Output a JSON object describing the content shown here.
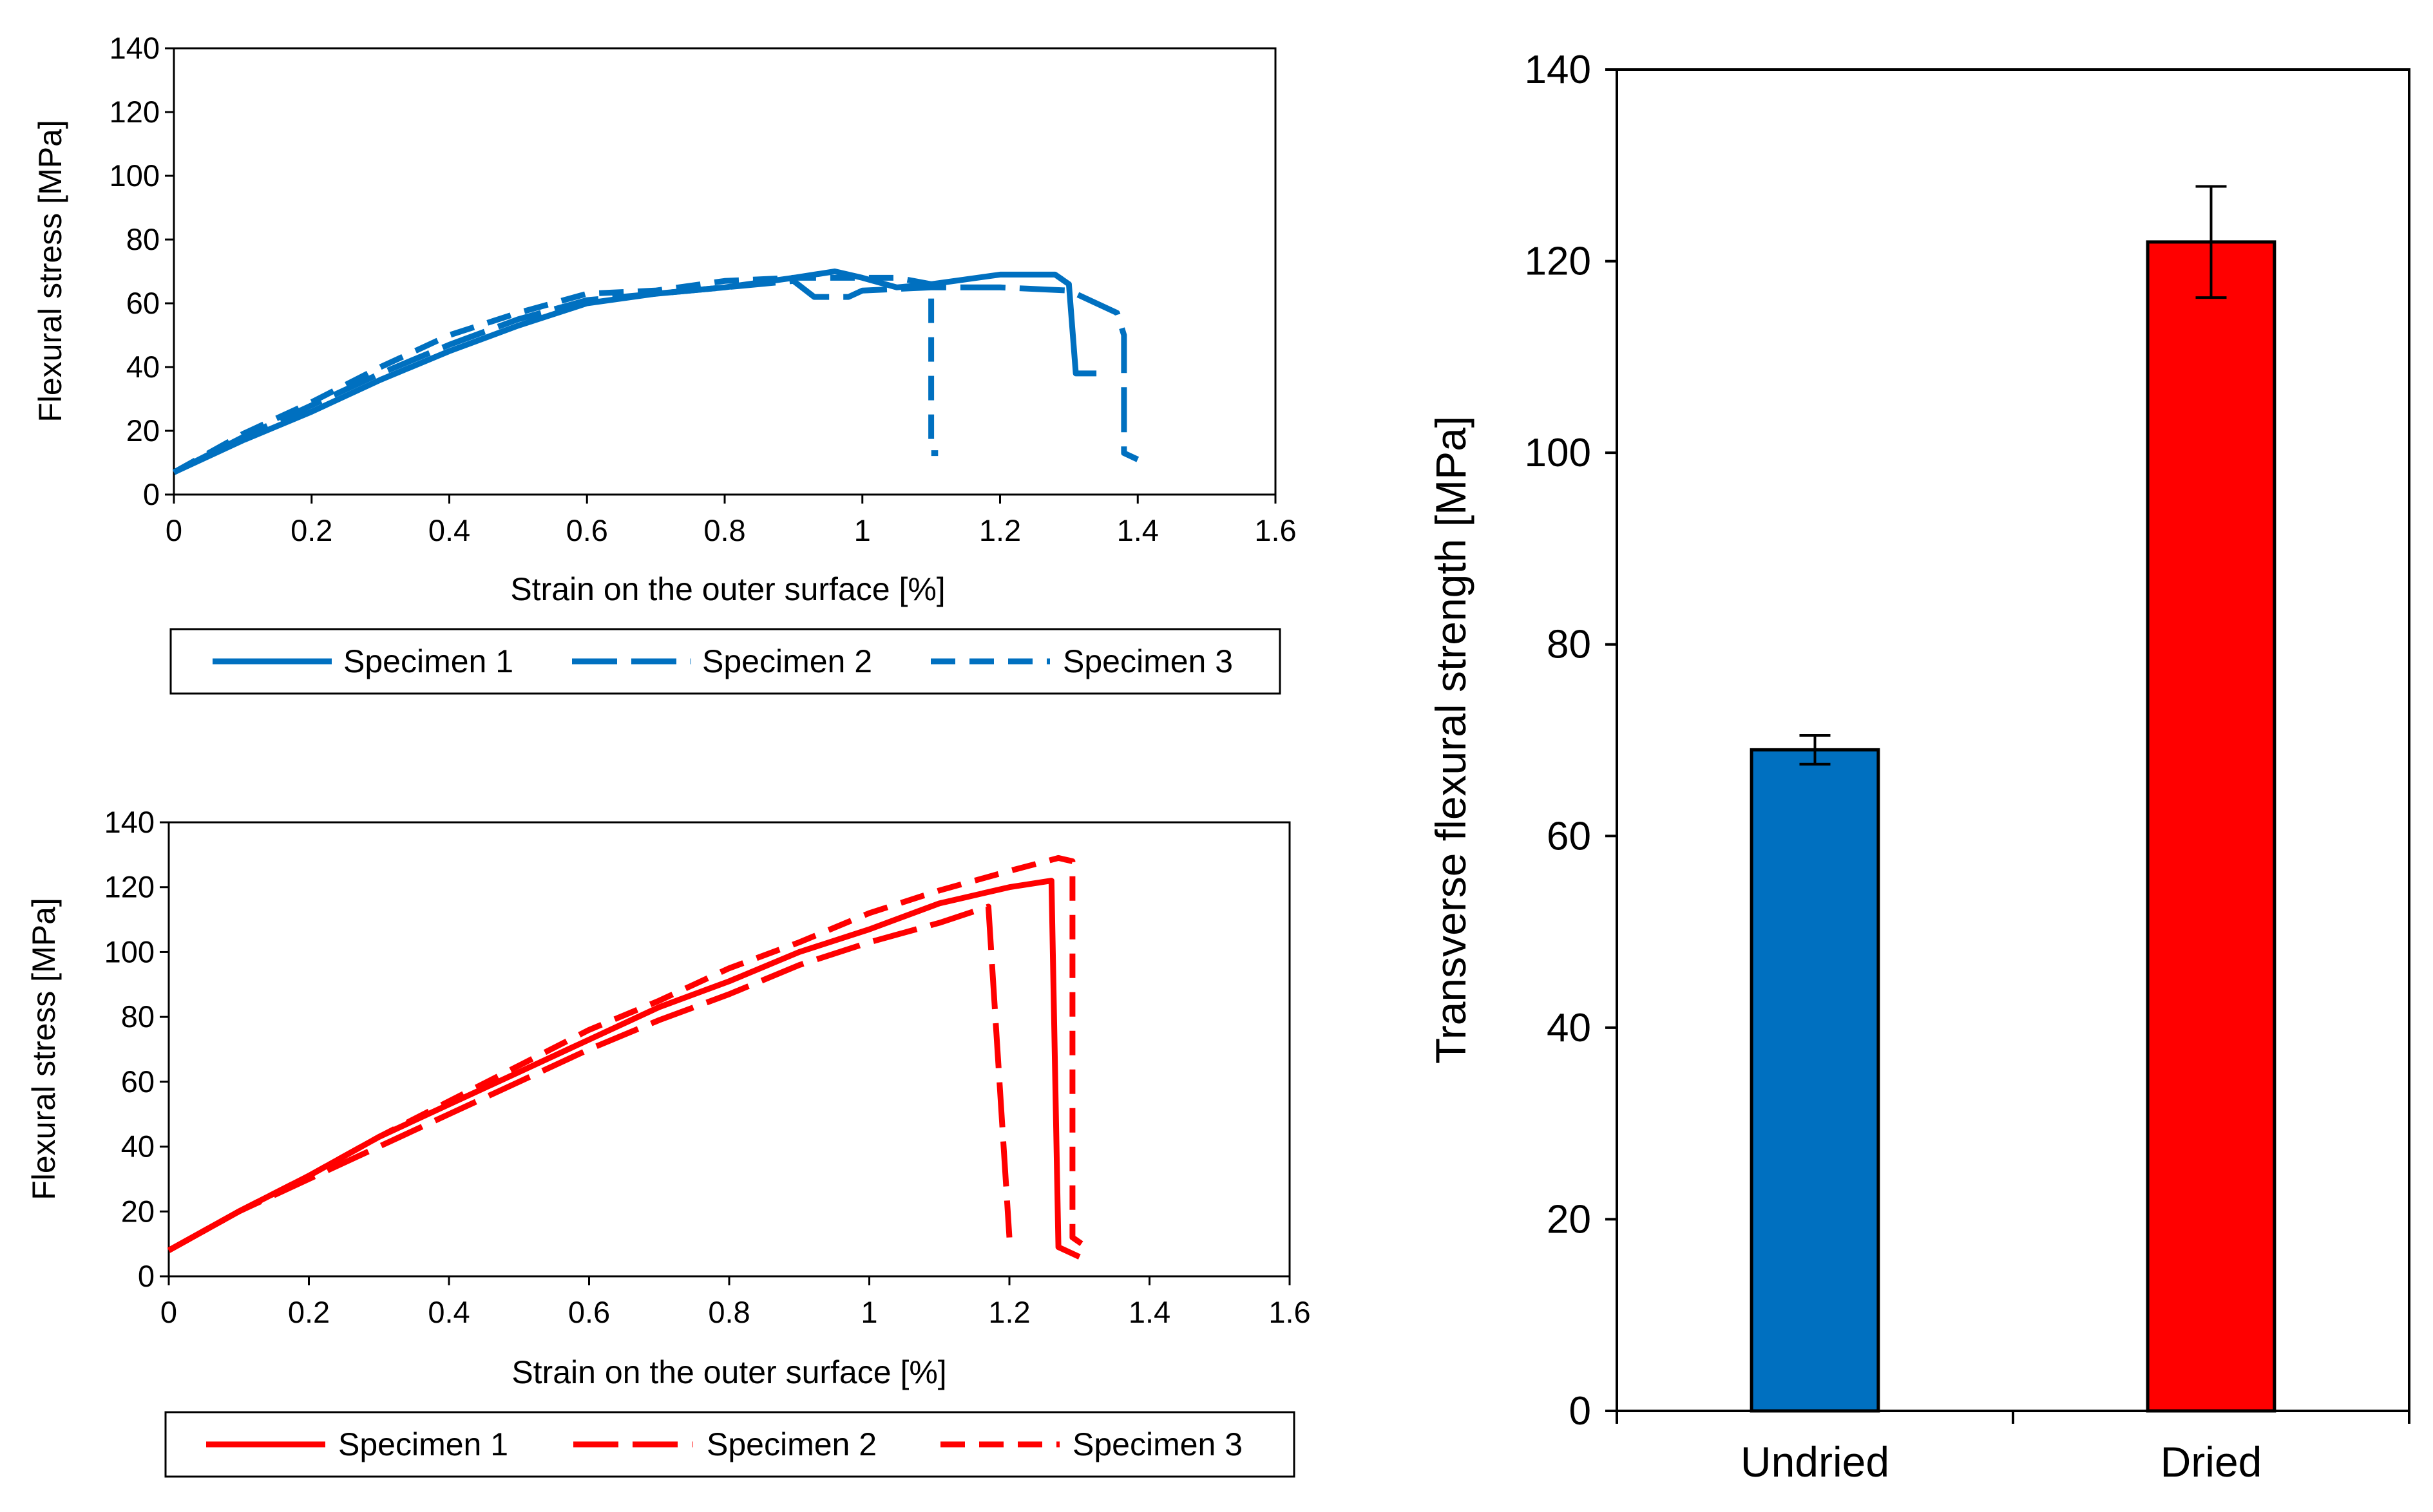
{
  "chart_data": [
    {
      "id": "undried-curves",
      "type": "line",
      "title": "",
      "xlabel": "Strain on the outer surface [%]",
      "ylabel": "Flexural  stress [MPa]",
      "xlim": [
        0,
        1.6
      ],
      "ylim": [
        0,
        140
      ],
      "xticks": [
        "0",
        "0.2",
        "0.4",
        "0.6",
        "0.8",
        "1",
        "1.2",
        "1.4",
        "1.6"
      ],
      "yticks": [
        "0",
        "20",
        "40",
        "60",
        "80",
        "100",
        "120",
        "140"
      ],
      "color": "#0070C0",
      "legend": [
        "Specimen 1",
        "Specimen 2",
        "Specimen 3"
      ],
      "series": [
        {
          "name": "Specimen 1",
          "style": "solid",
          "x": [
            0,
            0.1,
            0.2,
            0.3,
            0.4,
            0.5,
            0.6,
            0.7,
            0.8,
            0.9,
            0.96,
            1.0,
            1.05,
            1.1,
            1.2,
            1.28,
            1.3,
            1.31,
            1.34
          ],
          "y": [
            7,
            17,
            26,
            36,
            45,
            53,
            60,
            63,
            65,
            68,
            70,
            68,
            65,
            66,
            69,
            69,
            66,
            38,
            38
          ]
        },
        {
          "name": "Specimen 2",
          "style": "long-dash",
          "x": [
            0,
            0.1,
            0.2,
            0.3,
            0.4,
            0.5,
            0.6,
            0.7,
            0.8,
            0.9,
            0.93,
            0.98,
            1.0,
            1.1,
            1.2,
            1.3,
            1.37,
            1.38,
            1.38,
            1.4
          ],
          "y": [
            7,
            18,
            28,
            38,
            47,
            55,
            61,
            63,
            65,
            67,
            62,
            62,
            64,
            65,
            65,
            64,
            57,
            50,
            13,
            11
          ]
        },
        {
          "name": "Specimen 3",
          "style": "dash",
          "x": [
            0,
            0.1,
            0.2,
            0.3,
            0.4,
            0.5,
            0.6,
            0.7,
            0.8,
            0.9,
            1.0,
            1.05,
            1.1,
            1.1,
            1.11
          ],
          "y": [
            7,
            19,
            29,
            40,
            50,
            57,
            63,
            64,
            67,
            68,
            68,
            68,
            66,
            13,
            13
          ]
        }
      ]
    },
    {
      "id": "dried-curves",
      "type": "line",
      "title": "",
      "xlabel": "Strain on the outer surface [%]",
      "ylabel": "Flexural  stress [MPa]",
      "xlim": [
        0,
        1.6
      ],
      "ylim": [
        0,
        140
      ],
      "xticks": [
        "0",
        "0.2",
        "0.4",
        "0.6",
        "0.8",
        "1",
        "1.2",
        "1.4",
        "1.6"
      ],
      "yticks": [
        "0",
        "20",
        "40",
        "60",
        "80",
        "100",
        "120",
        "140"
      ],
      "color": "#FF0000",
      "legend": [
        "Specimen 1",
        "Specimen 2",
        "Specimen 3"
      ],
      "series": [
        {
          "name": "Specimen 1",
          "style": "solid",
          "x": [
            0,
            0.1,
            0.2,
            0.3,
            0.4,
            0.5,
            0.6,
            0.7,
            0.8,
            0.9,
            1.0,
            1.1,
            1.2,
            1.26,
            1.27,
            1.3
          ],
          "y": [
            8,
            20,
            31,
            43,
            53,
            63,
            73,
            83,
            91,
            100,
            107,
            115,
            120,
            122,
            9,
            6
          ]
        },
        {
          "name": "Specimen 2",
          "style": "long-dash",
          "x": [
            0,
            0.1,
            0.2,
            0.3,
            0.4,
            0.5,
            0.6,
            0.7,
            0.8,
            0.9,
            1.0,
            1.1,
            1.17,
            1.18,
            1.2
          ],
          "y": [
            8,
            20,
            30,
            40,
            50,
            60,
            70,
            79,
            87,
            96,
            103,
            109,
            114,
            80,
            12
          ]
        },
        {
          "name": "Specimen 3",
          "style": "dash",
          "x": [
            0,
            0.1,
            0.2,
            0.3,
            0.4,
            0.5,
            0.6,
            0.7,
            0.8,
            0.9,
            1.0,
            1.1,
            1.2,
            1.27,
            1.29,
            1.29,
            1.31
          ],
          "y": [
            8,
            20,
            31,
            43,
            54,
            65,
            76,
            85,
            95,
            103,
            112,
            119,
            125,
            129,
            128,
            12,
            9
          ]
        }
      ]
    },
    {
      "id": "strength-bars",
      "type": "bar",
      "title": "",
      "xlabel": "",
      "ylabel": "Transverse flexural strength [MPa]",
      "ylim": [
        0,
        140
      ],
      "yticks": [
        "0",
        "20",
        "40",
        "60",
        "80",
        "100",
        "120",
        "140"
      ],
      "categories": [
        "Undried",
        "Dried"
      ],
      "values": [
        69,
        122
      ],
      "errors": [
        1.5,
        5.8
      ],
      "colors": [
        "#0070C0",
        "#FF0000"
      ]
    }
  ]
}
